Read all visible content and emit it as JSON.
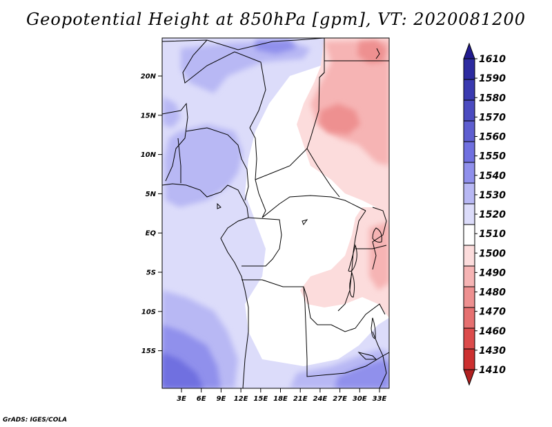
{
  "title": "Geopotential Height at 850hPa [gpm], VT: 2020081200",
  "footer": "GrADS: IGES/COLA",
  "map": {
    "lat_ticks": [
      "20N",
      "15N",
      "10N",
      "5N",
      "EQ",
      "5S",
      "10S",
      "15S"
    ],
    "lon_ticks": [
      "3E",
      "6E",
      "9E",
      "12E",
      "15E",
      "18E",
      "21E",
      "24E",
      "27E",
      "30E",
      "33E"
    ]
  },
  "colorbar": {
    "labels": [
      "1610",
      "1590",
      "1580",
      "1570",
      "1560",
      "1550",
      "1540",
      "1530",
      "1520",
      "1510",
      "1500",
      "1490",
      "1480",
      "1470",
      "1460",
      "1430",
      "1410"
    ],
    "colors": [
      "#221b8f",
      "#2d2ba0",
      "#3a3ab0",
      "#4b4bc0",
      "#5e5ed0",
      "#7070e0",
      "#9090ec",
      "#b8b8f4",
      "#dcdcfa",
      "#ffffff",
      "#fcdcdc",
      "#f6b4b4",
      "#ee9090",
      "#e67070",
      "#dc4b4b",
      "#cc3030",
      "#b02020"
    ]
  }
}
